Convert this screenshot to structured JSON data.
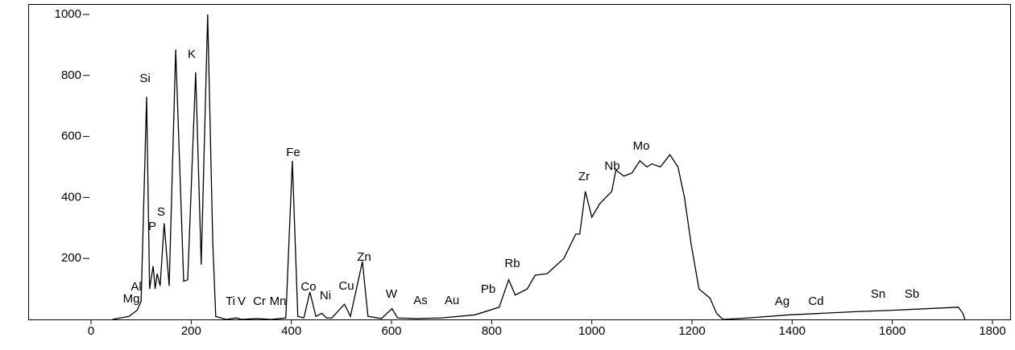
{
  "chart_data": {
    "type": "line",
    "x": [
      43,
      76,
      92,
      100,
      111,
      117,
      124,
      128,
      132,
      138,
      146,
      156,
      169,
      185,
      193,
      209,
      220,
      233,
      243,
      249,
      270,
      290,
      300,
      330,
      360,
      389,
      402,
      413,
      425,
      437,
      449,
      461,
      470,
      481,
      506,
      518,
      542,
      553,
      580,
      601,
      612,
      650,
      700,
      767,
      815,
      834,
      847,
      871,
      887,
      911,
      944,
      968,
      976,
      987,
      1000,
      1016,
      1040,
      1048,
      1064,
      1080,
      1096,
      1110,
      1120,
      1137,
      1156,
      1172,
      1185,
      1198,
      1214,
      1236,
      1249,
      1262,
      1313,
      1394,
      1460,
      1522,
      1600,
      1667,
      1732,
      1741,
      1745
    ],
    "series": [
      {
        "color": "#000000",
        "values": [
          0,
          10,
          30,
          60,
          730,
          100,
          175,
          100,
          150,
          110,
          315,
          110,
          885,
          125,
          130,
          810,
          180,
          1000,
          255,
          10,
          0,
          5,
          0,
          3,
          0,
          5,
          520,
          10,
          5,
          90,
          10,
          20,
          5,
          5,
          50,
          10,
          190,
          10,
          3,
          35,
          5,
          3,
          5,
          15,
          40,
          130,
          80,
          100,
          145,
          150,
          200,
          280,
          280,
          420,
          335,
          380,
          420,
          490,
          470,
          480,
          520,
          500,
          510,
          500,
          540,
          500,
          400,
          250,
          100,
          70,
          20,
          0,
          5,
          15,
          20,
          25,
          30,
          35,
          40,
          20,
          0
        ]
      }
    ],
    "annotations": [
      "Mg",
      "Al",
      "Si",
      "P",
      "S",
      "K",
      "Ti",
      "V",
      "Cr",
      "Mn",
      "Fe",
      "Co",
      "Ni",
      "Cu",
      "Zn",
      "W",
      "As",
      "Au",
      "Pb",
      "Rb",
      "Zr",
      "Nb",
      "Mo",
      "Ag",
      "Cd",
      "Sn",
      "Sb"
    ],
    "xlim": [
      0,
      1800
    ],
    "ylim": [
      0,
      1000
    ],
    "xticks": [
      0,
      200,
      400,
      600,
      800,
      1000,
      1200,
      1400,
      1600,
      1800
    ],
    "yticks": [
      200,
      400,
      600,
      800,
      1000
    ]
  }
}
